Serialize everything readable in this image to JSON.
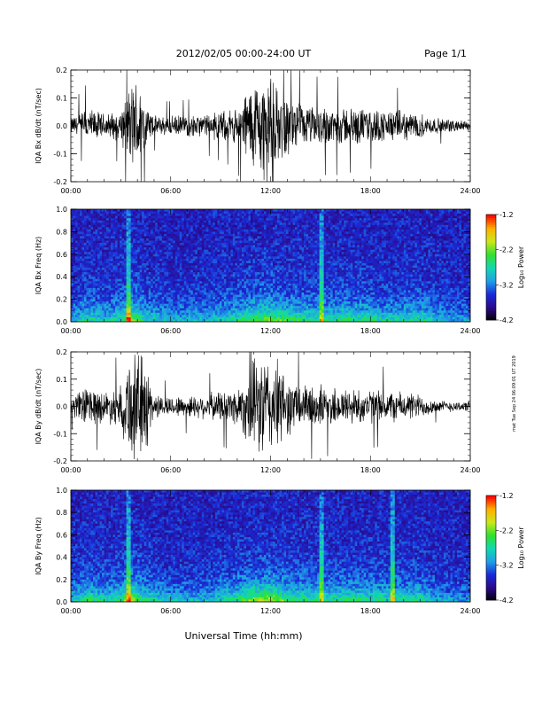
{
  "header": {
    "title": "2012/02/05  00:00-24:00 UT",
    "page": "Page 1/1"
  },
  "footer": {
    "xlabel": "Universal Time (hh:mm)",
    "side_text": "mat Tue Sep 24 06:09:01 UT 2019"
  },
  "colors": {
    "waveform": "#000000",
    "colormap": [
      "#000000",
      "#2a0a8a",
      "#1a2ad8",
      "#1f9fe8",
      "#12d8b0",
      "#30e030",
      "#c8e81a",
      "#ffb000",
      "#ff0000"
    ]
  },
  "chart_data": [
    {
      "type": "line",
      "ylabel": "IQA Bx dB/dt (nT/sec)",
      "ylim": [
        -0.2,
        0.2
      ],
      "yticks": [
        "0.2",
        "0.1",
        "0.0",
        "-0.1",
        "-0.2"
      ],
      "xticks": [
        "00:00",
        "06:00",
        "12:00",
        "18:00",
        "24:00"
      ],
      "xrange_hours": [
        0,
        24
      ],
      "amplitude_envelope": {
        "hours": [
          0.0,
          1.0,
          2.0,
          3.0,
          3.5,
          4.0,
          4.5,
          5.0,
          6.0,
          8.0,
          10.0,
          10.5,
          11.0,
          11.5,
          12.0,
          12.5,
          13.0,
          14.0,
          16.0,
          18.0,
          20.0,
          21.0,
          22.0,
          24.0
        ],
        "amplitude": [
          0.035,
          0.07,
          0.05,
          0.06,
          0.16,
          0.2,
          0.09,
          0.04,
          0.04,
          0.045,
          0.07,
          0.14,
          0.19,
          0.21,
          0.2,
          0.14,
          0.12,
          0.08,
          0.08,
          0.07,
          0.06,
          0.05,
          0.03,
          0.02
        ]
      }
    },
    {
      "type": "heatmap",
      "ylabel": "IQA Bx Freq (Hz)",
      "ylim": [
        0.0,
        1.0
      ],
      "yticks": [
        "1.0",
        "0.8",
        "0.6",
        "0.4",
        "0.2",
        "0.0"
      ],
      "xticks": [
        "00:00",
        "06:00",
        "12:00",
        "18:00",
        "24:00"
      ],
      "colorbar": {
        "label": "Log₁₀ Power",
        "range": [
          -4.2,
          -1.2
        ],
        "ticks": [
          "-1.2",
          "-2.2",
          "-3.2",
          "-4.2"
        ]
      },
      "vertical_lines_hours": [
        3.5,
        15.1
      ],
      "activity": {
        "hours": [
          0.0,
          1.0,
          2.0,
          3.0,
          3.5,
          4.5,
          6.0,
          8.0,
          10.0,
          11.0,
          12.0,
          13.0,
          15.0,
          17.0,
          19.0,
          21.0,
          22.0,
          24.0
        ],
        "level": [
          0.3,
          0.5,
          0.4,
          0.5,
          0.75,
          0.45,
          0.35,
          0.35,
          0.5,
          0.65,
          0.7,
          0.6,
          0.5,
          0.55,
          0.45,
          0.5,
          0.35,
          0.25
        ]
      }
    },
    {
      "type": "line",
      "ylabel": "IQA By dB/dt (nT/sec)",
      "ylim": [
        -0.2,
        0.2
      ],
      "yticks": [
        "0.2",
        "0.1",
        "0.0",
        "-0.1",
        "-0.2"
      ],
      "xticks": [
        "00:00",
        "06:00",
        "12:00",
        "18:00",
        "24:00"
      ],
      "xrange_hours": [
        0,
        24
      ],
      "amplitude_envelope": {
        "hours": [
          0.0,
          1.0,
          2.0,
          3.0,
          3.5,
          4.0,
          4.5,
          5.0,
          6.0,
          8.0,
          10.0,
          11.0,
          11.5,
          12.0,
          12.5,
          13.0,
          14.0,
          16.0,
          18.0,
          20.0,
          21.0,
          22.0,
          24.0
        ],
        "amplitude": [
          0.035,
          0.09,
          0.06,
          0.09,
          0.22,
          0.23,
          0.2,
          0.05,
          0.04,
          0.05,
          0.08,
          0.19,
          0.22,
          0.2,
          0.18,
          0.12,
          0.09,
          0.08,
          0.07,
          0.06,
          0.05,
          0.025,
          0.02
        ]
      }
    },
    {
      "type": "heatmap",
      "ylabel": "IQA By Freq (Hz)",
      "ylim": [
        0.0,
        1.0
      ],
      "yticks": [
        "1.0",
        "0.8",
        "0.6",
        "0.4",
        "0.2",
        "0.0"
      ],
      "xticks": [
        "00:00",
        "06:00",
        "12:00",
        "18:00",
        "24:00"
      ],
      "colorbar": {
        "label": "Log₁₀ Power",
        "range": [
          -4.2,
          -1.2
        ],
        "ticks": [
          "-1.2",
          "-2.2",
          "-3.2",
          "-4.2"
        ]
      },
      "vertical_lines_hours": [
        3.5,
        15.1,
        19.4
      ],
      "activity": {
        "hours": [
          0.0,
          1.0,
          2.0,
          3.0,
          3.5,
          4.5,
          6.0,
          8.0,
          10.0,
          11.0,
          12.0,
          13.0,
          15.0,
          17.0,
          19.0,
          21.0,
          22.0,
          24.0
        ],
        "level": [
          0.35,
          0.55,
          0.45,
          0.5,
          0.8,
          0.5,
          0.35,
          0.35,
          0.55,
          0.75,
          0.8,
          0.6,
          0.5,
          0.55,
          0.5,
          0.5,
          0.3,
          0.25
        ]
      }
    }
  ]
}
